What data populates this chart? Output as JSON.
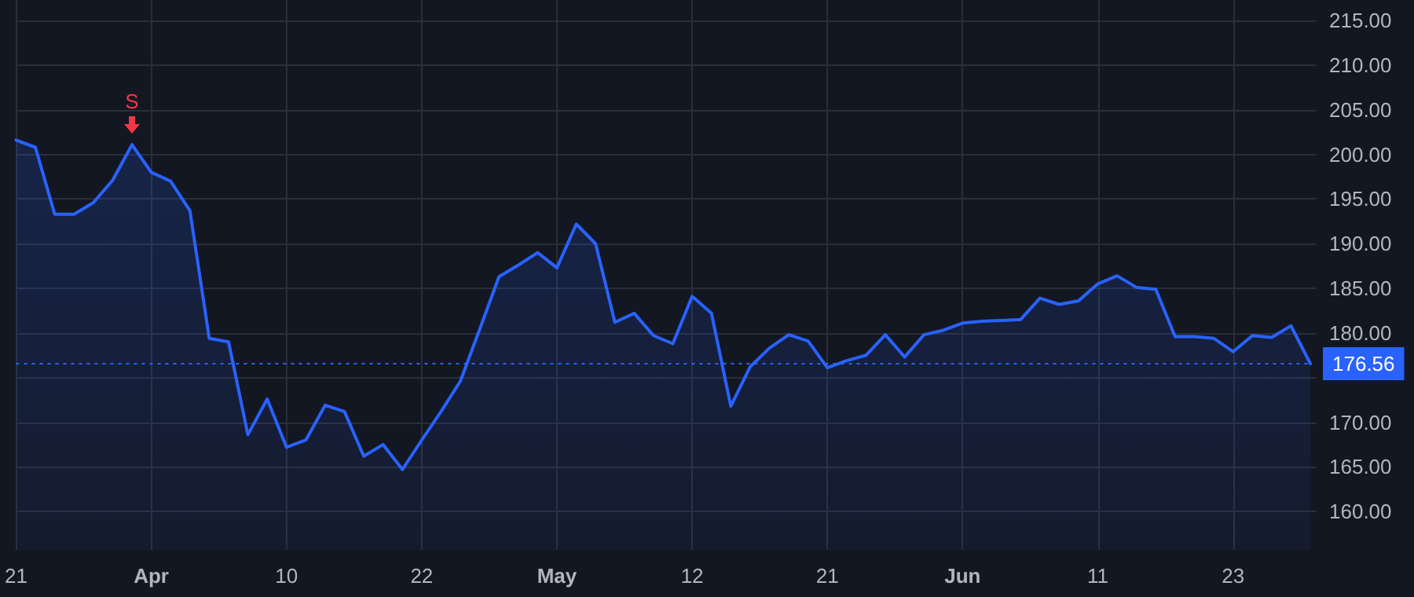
{
  "chart_data": {
    "type": "area",
    "categories": [
      "21",
      null,
      null,
      null,
      null,
      null,
      null,
      "Apr",
      null,
      null,
      null,
      null,
      null,
      null,
      "10",
      null,
      null,
      null,
      null,
      null,
      null,
      "22",
      null,
      null,
      null,
      null,
      null,
      null,
      "May",
      null,
      null,
      null,
      null,
      null,
      null,
      "12",
      null,
      null,
      null,
      null,
      null,
      null,
      "21",
      null,
      null,
      null,
      null,
      null,
      null,
      "Jun",
      null,
      null,
      null,
      null,
      null,
      null,
      "11",
      null,
      null,
      null,
      null,
      null,
      null,
      "23",
      null,
      null,
      null,
      null
    ],
    "series": [
      {
        "color": "#2962ff",
        "values": [
          201.6,
          200.8,
          193.3,
          193.3,
          194.6,
          197.1,
          201.1,
          198.0,
          197.0,
          193.7,
          179.4,
          179.0,
          168.6,
          172.6,
          167.2,
          168.0,
          171.9,
          171.2,
          166.2,
          167.5,
          164.7,
          168.0,
          171.2,
          174.6,
          180.4,
          186.3,
          187.6,
          189.0,
          187.3,
          192.2,
          190.0,
          181.2,
          182.2,
          179.7,
          178.8,
          184.1,
          182.2,
          171.8,
          176.2,
          178.3,
          179.8,
          179.1,
          176.1,
          176.9,
          177.5,
          179.8,
          177.3,
          179.8,
          180.3,
          181.1,
          181.3,
          181.4,
          181.5,
          183.9,
          183.2,
          183.6,
          185.5,
          186.4,
          185.1,
          184.9,
          179.6,
          179.6,
          179.4,
          177.9,
          179.7,
          179.5,
          180.8,
          176.56
        ]
      }
    ],
    "ylim": [
      155.7,
      217.3
    ],
    "yticks": [
      {
        "value": 160,
        "label": "160.00"
      },
      {
        "value": 165,
        "label": "165.00"
      },
      {
        "value": 170,
        "label": "170.00"
      },
      {
        "value": 175,
        "label": null
      },
      {
        "value": 180,
        "label": "180.00"
      },
      {
        "value": 185,
        "label": "185.00"
      },
      {
        "value": 190,
        "label": "190.00"
      },
      {
        "value": 195,
        "label": "195.00"
      },
      {
        "value": 200,
        "label": "200.00"
      },
      {
        "value": 205,
        "label": "205.00"
      },
      {
        "value": 210,
        "label": "210.00"
      },
      {
        "value": 215,
        "label": "215.00"
      }
    ],
    "grid": true,
    "ref_lines": [
      {
        "axis": "y",
        "value": 176.56,
        "label": "176.56",
        "color": "#2962ff",
        "line_style": "dotted"
      }
    ],
    "annotations": [
      {
        "text": "S",
        "y": 201.1
      }
    ]
  }
}
